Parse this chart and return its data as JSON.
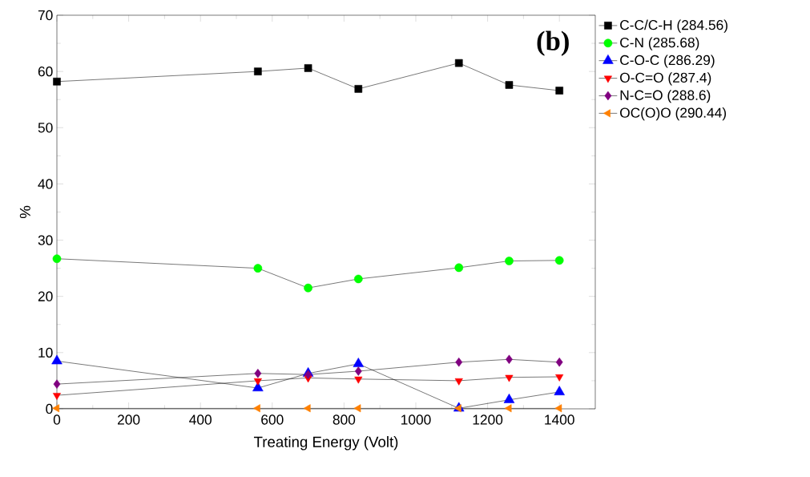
{
  "chart_data": {
    "type": "line",
    "xlabel": "Treating Energy (Volt)",
    "ylabel": "%",
    "annotations": [
      "**(b)**"
    ],
    "x": [
      0,
      560,
      700,
      840,
      1120,
      1260,
      1400
    ],
    "series": [
      {
        "name": "C-C/C-H (284.56)",
        "color": "#000000",
        "marker": "square",
        "values": [
          58.2,
          60.0,
          60.6,
          56.9,
          61.5,
          57.6,
          56.6
        ]
      },
      {
        "name": "C-N (285.68)",
        "color": "#00ff00",
        "marker": "circle",
        "values": [
          26.7,
          25.0,
          21.5,
          23.1,
          25.1,
          26.3,
          26.4
        ]
      },
      {
        "name": "C-O-C (286.29)",
        "color": "#0000ff",
        "marker": "triangle",
        "values": [
          8.5,
          3.7,
          6.3,
          8.0,
          0.1,
          1.6,
          3.0
        ]
      },
      {
        "name": "O-C=O (287.4)",
        "color": "#ff0000",
        "marker": "triangle-down",
        "values": [
          2.4,
          5.0,
          5.5,
          5.3,
          5.0,
          5.6,
          5.7
        ]
      },
      {
        "name": "N-C=O (288.6)",
        "color": "#800080",
        "marker": "diamond",
        "values": [
          4.4,
          6.3,
          6.1,
          6.7,
          8.3,
          8.8,
          8.3
        ]
      },
      {
        "name": "OC(O)O (290.44)",
        "color": "#ff8000",
        "marker": "triangle-left",
        "values": [
          0.1,
          0.1,
          0.1,
          0.1,
          0.1,
          0.1,
          0.1
        ]
      }
    ],
    "xlim": [
      0,
      1500
    ],
    "xticks": [
      0,
      200,
      400,
      600,
      800,
      1000,
      1200,
      1400
    ],
    "ylim": [
      0,
      70
    ],
    "yticks": [
      0,
      10,
      20,
      30,
      40,
      50,
      60,
      70
    ],
    "legend": "right",
    "grid": false,
    "line_style": "solid"
  }
}
